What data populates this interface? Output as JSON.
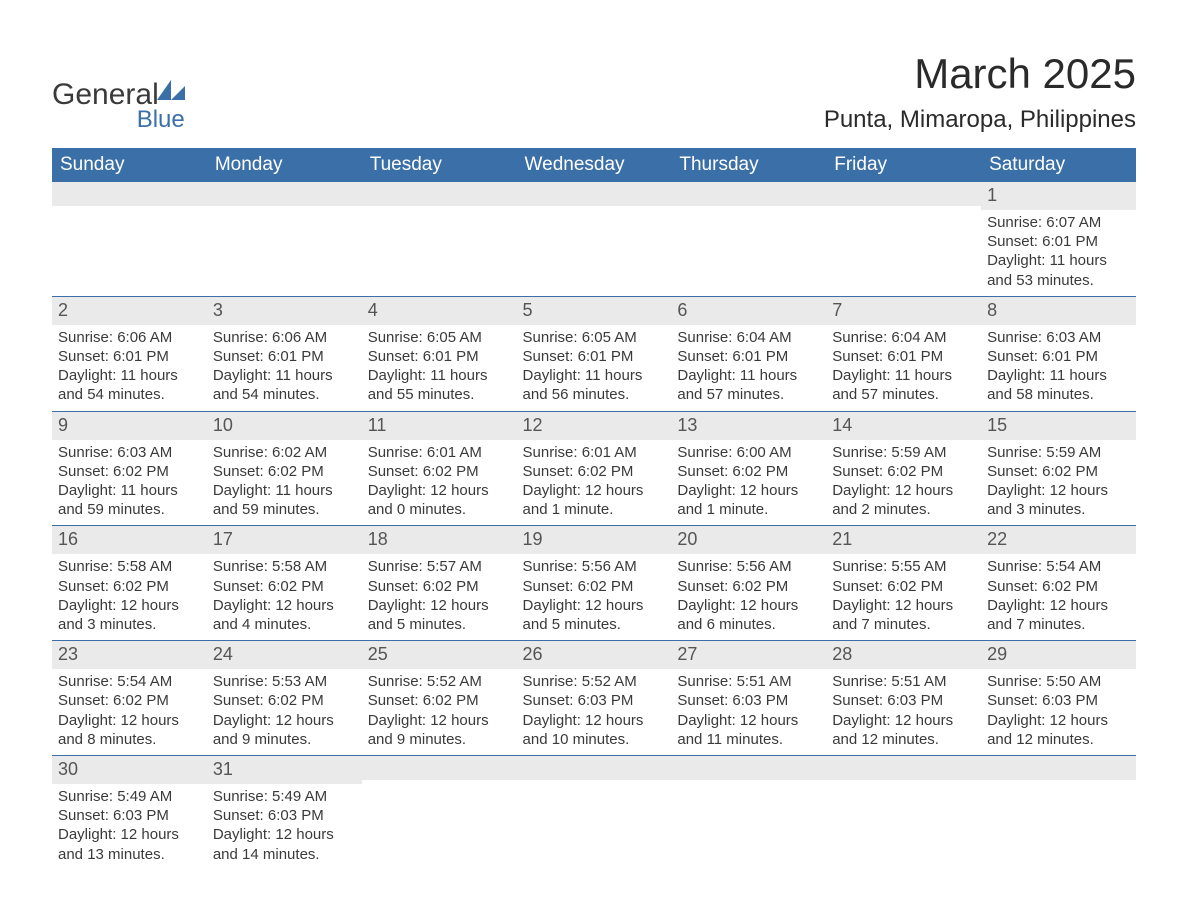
{
  "logo": {
    "text1": "General",
    "text2": "Blue"
  },
  "title": "March 2025",
  "location": "Punta, Mimaropa, Philippines",
  "colors": {
    "header_bg": "#3b6fa8",
    "header_fg": "#ffffff",
    "row_divider": "#3b6fa8",
    "daynum_bg": "#eaeaea",
    "text": "#3a3a3a",
    "logo_blue": "#3b6fa8"
  },
  "days_of_week": [
    "Sunday",
    "Monday",
    "Tuesday",
    "Wednesday",
    "Thursday",
    "Friday",
    "Saturday"
  ],
  "weeks": [
    [
      {
        "n": "",
        "sunrise": "",
        "sunset": "",
        "day": ""
      },
      {
        "n": "",
        "sunrise": "",
        "sunset": "",
        "day": ""
      },
      {
        "n": "",
        "sunrise": "",
        "sunset": "",
        "day": ""
      },
      {
        "n": "",
        "sunrise": "",
        "sunset": "",
        "day": ""
      },
      {
        "n": "",
        "sunrise": "",
        "sunset": "",
        "day": ""
      },
      {
        "n": "",
        "sunrise": "",
        "sunset": "",
        "day": ""
      },
      {
        "n": "1",
        "sunrise": "Sunrise: 6:07 AM",
        "sunset": "Sunset: 6:01 PM",
        "day": "Daylight: 11 hours and 53 minutes."
      }
    ],
    [
      {
        "n": "2",
        "sunrise": "Sunrise: 6:06 AM",
        "sunset": "Sunset: 6:01 PM",
        "day": "Daylight: 11 hours and 54 minutes."
      },
      {
        "n": "3",
        "sunrise": "Sunrise: 6:06 AM",
        "sunset": "Sunset: 6:01 PM",
        "day": "Daylight: 11 hours and 54 minutes."
      },
      {
        "n": "4",
        "sunrise": "Sunrise: 6:05 AM",
        "sunset": "Sunset: 6:01 PM",
        "day": "Daylight: 11 hours and 55 minutes."
      },
      {
        "n": "5",
        "sunrise": "Sunrise: 6:05 AM",
        "sunset": "Sunset: 6:01 PM",
        "day": "Daylight: 11 hours and 56 minutes."
      },
      {
        "n": "6",
        "sunrise": "Sunrise: 6:04 AM",
        "sunset": "Sunset: 6:01 PM",
        "day": "Daylight: 11 hours and 57 minutes."
      },
      {
        "n": "7",
        "sunrise": "Sunrise: 6:04 AM",
        "sunset": "Sunset: 6:01 PM",
        "day": "Daylight: 11 hours and 57 minutes."
      },
      {
        "n": "8",
        "sunrise": "Sunrise: 6:03 AM",
        "sunset": "Sunset: 6:01 PM",
        "day": "Daylight: 11 hours and 58 minutes."
      }
    ],
    [
      {
        "n": "9",
        "sunrise": "Sunrise: 6:03 AM",
        "sunset": "Sunset: 6:02 PM",
        "day": "Daylight: 11 hours and 59 minutes."
      },
      {
        "n": "10",
        "sunrise": "Sunrise: 6:02 AM",
        "sunset": "Sunset: 6:02 PM",
        "day": "Daylight: 11 hours and 59 minutes."
      },
      {
        "n": "11",
        "sunrise": "Sunrise: 6:01 AM",
        "sunset": "Sunset: 6:02 PM",
        "day": "Daylight: 12 hours and 0 minutes."
      },
      {
        "n": "12",
        "sunrise": "Sunrise: 6:01 AM",
        "sunset": "Sunset: 6:02 PM",
        "day": "Daylight: 12 hours and 1 minute."
      },
      {
        "n": "13",
        "sunrise": "Sunrise: 6:00 AM",
        "sunset": "Sunset: 6:02 PM",
        "day": "Daylight: 12 hours and 1 minute."
      },
      {
        "n": "14",
        "sunrise": "Sunrise: 5:59 AM",
        "sunset": "Sunset: 6:02 PM",
        "day": "Daylight: 12 hours and 2 minutes."
      },
      {
        "n": "15",
        "sunrise": "Sunrise: 5:59 AM",
        "sunset": "Sunset: 6:02 PM",
        "day": "Daylight: 12 hours and 3 minutes."
      }
    ],
    [
      {
        "n": "16",
        "sunrise": "Sunrise: 5:58 AM",
        "sunset": "Sunset: 6:02 PM",
        "day": "Daylight: 12 hours and 3 minutes."
      },
      {
        "n": "17",
        "sunrise": "Sunrise: 5:58 AM",
        "sunset": "Sunset: 6:02 PM",
        "day": "Daylight: 12 hours and 4 minutes."
      },
      {
        "n": "18",
        "sunrise": "Sunrise: 5:57 AM",
        "sunset": "Sunset: 6:02 PM",
        "day": "Daylight: 12 hours and 5 minutes."
      },
      {
        "n": "19",
        "sunrise": "Sunrise: 5:56 AM",
        "sunset": "Sunset: 6:02 PM",
        "day": "Daylight: 12 hours and 5 minutes."
      },
      {
        "n": "20",
        "sunrise": "Sunrise: 5:56 AM",
        "sunset": "Sunset: 6:02 PM",
        "day": "Daylight: 12 hours and 6 minutes."
      },
      {
        "n": "21",
        "sunrise": "Sunrise: 5:55 AM",
        "sunset": "Sunset: 6:02 PM",
        "day": "Daylight: 12 hours and 7 minutes."
      },
      {
        "n": "22",
        "sunrise": "Sunrise: 5:54 AM",
        "sunset": "Sunset: 6:02 PM",
        "day": "Daylight: 12 hours and 7 minutes."
      }
    ],
    [
      {
        "n": "23",
        "sunrise": "Sunrise: 5:54 AM",
        "sunset": "Sunset: 6:02 PM",
        "day": "Daylight: 12 hours and 8 minutes."
      },
      {
        "n": "24",
        "sunrise": "Sunrise: 5:53 AM",
        "sunset": "Sunset: 6:02 PM",
        "day": "Daylight: 12 hours and 9 minutes."
      },
      {
        "n": "25",
        "sunrise": "Sunrise: 5:52 AM",
        "sunset": "Sunset: 6:02 PM",
        "day": "Daylight: 12 hours and 9 minutes."
      },
      {
        "n": "26",
        "sunrise": "Sunrise: 5:52 AM",
        "sunset": "Sunset: 6:03 PM",
        "day": "Daylight: 12 hours and 10 minutes."
      },
      {
        "n": "27",
        "sunrise": "Sunrise: 5:51 AM",
        "sunset": "Sunset: 6:03 PM",
        "day": "Daylight: 12 hours and 11 minutes."
      },
      {
        "n": "28",
        "sunrise": "Sunrise: 5:51 AM",
        "sunset": "Sunset: 6:03 PM",
        "day": "Daylight: 12 hours and 12 minutes."
      },
      {
        "n": "29",
        "sunrise": "Sunrise: 5:50 AM",
        "sunset": "Sunset: 6:03 PM",
        "day": "Daylight: 12 hours and 12 minutes."
      }
    ],
    [
      {
        "n": "30",
        "sunrise": "Sunrise: 5:49 AM",
        "sunset": "Sunset: 6:03 PM",
        "day": "Daylight: 12 hours and 13 minutes."
      },
      {
        "n": "31",
        "sunrise": "Sunrise: 5:49 AM",
        "sunset": "Sunset: 6:03 PM",
        "day": "Daylight: 12 hours and 14 minutes."
      },
      {
        "n": "",
        "sunrise": "",
        "sunset": "",
        "day": ""
      },
      {
        "n": "",
        "sunrise": "",
        "sunset": "",
        "day": ""
      },
      {
        "n": "",
        "sunrise": "",
        "sunset": "",
        "day": ""
      },
      {
        "n": "",
        "sunrise": "",
        "sunset": "",
        "day": ""
      },
      {
        "n": "",
        "sunrise": "",
        "sunset": "",
        "day": ""
      }
    ]
  ]
}
